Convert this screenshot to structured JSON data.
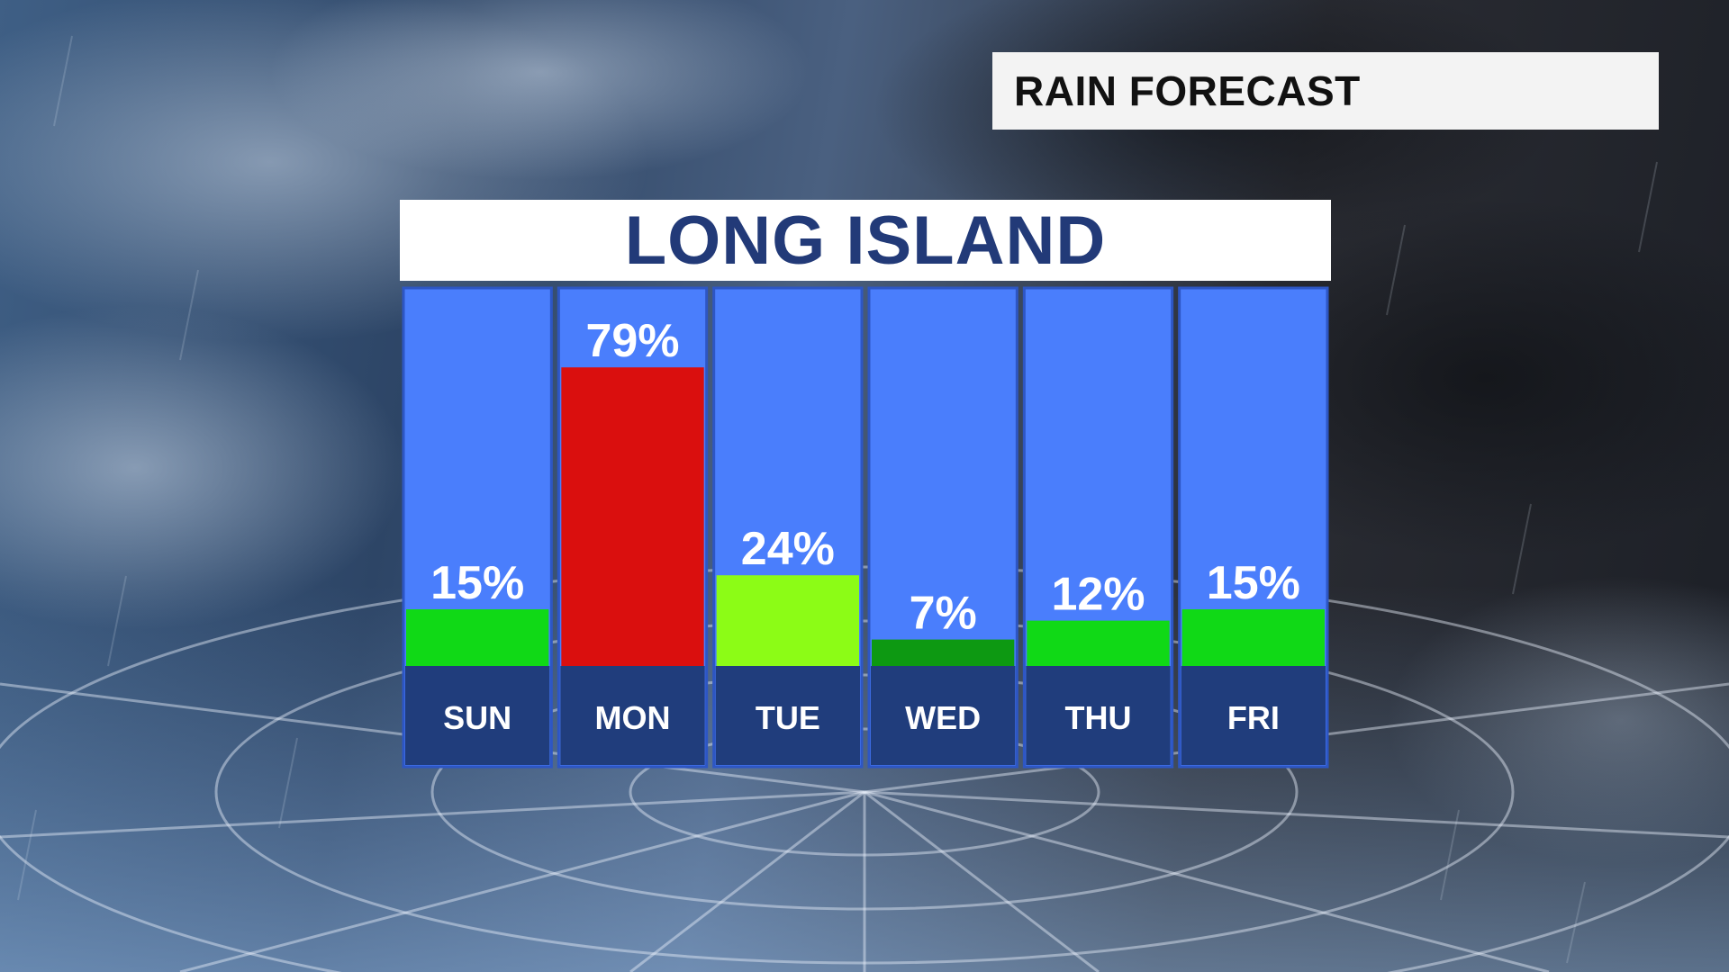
{
  "header": {
    "title": "RAIN FORECAST"
  },
  "panel": {
    "title": "LONG ISLAND"
  },
  "colors": {
    "column_bg": "#4a7efc",
    "column_border": "#2d56c4",
    "day_bar_bg": "#203d7c",
    "title_text": "#223a78"
  },
  "chart_data": {
    "type": "bar",
    "title": "LONG ISLAND",
    "categories": [
      "SUN",
      "MON",
      "TUE",
      "WED",
      "THU",
      "FRI"
    ],
    "values": [
      15,
      79,
      24,
      7,
      12,
      15
    ],
    "value_labels": [
      "15%",
      "79%",
      "24%",
      "7%",
      "12%",
      "15%"
    ],
    "bar_colors": [
      "#10d916",
      "#da0f0e",
      "#8cfc16",
      "#0d9912",
      "#10d916",
      "#10d916"
    ],
    "unit": "%",
    "ylim": [
      0,
      100
    ],
    "grid": false,
    "legend": "none"
  }
}
